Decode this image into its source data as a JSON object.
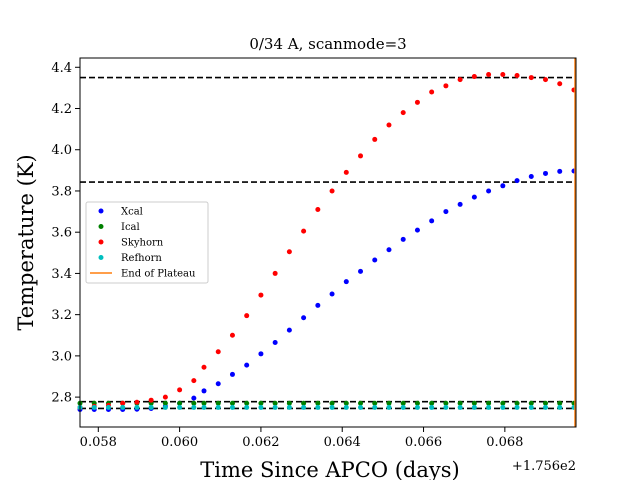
{
  "chart_data": {
    "type": "scatter",
    "title": "0/34 A, scanmode=3",
    "xlabel": "Time Since APCO (days)",
    "ylabel": "Temperature (K)",
    "x_offset_label": "+1.756e2",
    "xlim": [
      0.05755,
      0.06975
    ],
    "ylim": [
      2.655,
      4.445
    ],
    "x_ticks": [
      0.058,
      0.06,
      0.062,
      0.064,
      0.066,
      0.068
    ],
    "x_tick_labels": [
      "0.058",
      "0.060",
      "0.062",
      "0.064",
      "0.066",
      "0.068"
    ],
    "y_ticks": [
      2.8,
      3.0,
      3.2,
      3.4,
      3.6,
      3.8,
      4.0,
      4.2,
      4.4
    ],
    "y_tick_labels": [
      "2.8",
      "3.0",
      "3.2",
      "3.4",
      "3.6",
      "3.8",
      "4.0",
      "4.2",
      "4.4"
    ],
    "grid": false,
    "legend_position": "center-left",
    "x": [
      0.05755,
      0.05825,
      0.05895,
      0.05965,
      0.06035,
      0.06095,
      0.06165,
      0.06235,
      0.06305,
      0.06375,
      0.06445,
      0.06515,
      0.06585,
      0.06655,
      0.06725,
      0.06795,
      0.06865,
      0.06935,
      0.0579,
      0.0586,
      0.0593,
      0.06,
      0.0606,
      0.0613,
      0.062,
      0.0627,
      0.0634,
      0.0641,
      0.0648,
      0.0655,
      0.0662,
      0.0669,
      0.0676,
      0.0683,
      0.069,
      0.0697
    ],
    "series": [
      {
        "name": "Xcal",
        "color": "#0000ff",
        "values": [
          2.74,
          2.74,
          2.741,
          2.755,
          2.795,
          2.865,
          2.955,
          3.065,
          3.185,
          3.3,
          3.41,
          3.515,
          3.61,
          3.7,
          3.77,
          3.825,
          3.87,
          3.895,
          2.74,
          2.74,
          2.745,
          2.77,
          2.83,
          2.91,
          3.01,
          3.125,
          3.245,
          3.36,
          3.465,
          3.565,
          3.655,
          3.735,
          3.8,
          3.85,
          3.885,
          3.897
        ]
      },
      {
        "name": "Ical",
        "color": "#008000",
        "values": [
          2.77,
          2.77,
          2.77,
          2.77,
          2.77,
          2.77,
          2.77,
          2.77,
          2.77,
          2.77,
          2.77,
          2.77,
          2.77,
          2.77,
          2.77,
          2.77,
          2.77,
          2.77,
          2.77,
          2.77,
          2.77,
          2.77,
          2.77,
          2.77,
          2.77,
          2.77,
          2.77,
          2.77,
          2.77,
          2.77,
          2.77,
          2.77,
          2.77,
          2.77,
          2.77,
          2.77
        ]
      },
      {
        "name": "Skyhorn",
        "color": "#ff0000",
        "values": [
          2.75,
          2.76,
          2.775,
          2.8,
          2.88,
          3.02,
          3.195,
          3.4,
          3.605,
          3.8,
          3.97,
          4.12,
          4.23,
          4.31,
          4.355,
          4.365,
          4.35,
          4.32,
          2.755,
          2.77,
          2.785,
          2.835,
          2.945,
          3.1,
          3.295,
          3.505,
          3.71,
          3.89,
          4.05,
          4.18,
          4.28,
          4.34,
          4.365,
          4.36,
          4.34,
          4.29
        ]
      },
      {
        "name": "Refhorn",
        "color": "#00bfbf",
        "values": [
          2.75,
          2.75,
          2.75,
          2.75,
          2.75,
          2.75,
          2.75,
          2.75,
          2.75,
          2.75,
          2.75,
          2.75,
          2.75,
          2.75,
          2.75,
          2.75,
          2.75,
          2.75,
          2.75,
          2.75,
          2.75,
          2.75,
          2.75,
          2.75,
          2.75,
          2.75,
          2.75,
          2.75,
          2.75,
          2.75,
          2.75,
          2.75,
          2.75,
          2.75,
          2.75,
          2.75
        ]
      }
    ],
    "hlines": [
      4.35,
      3.843,
      2.778,
      2.745
    ],
    "hline_color": "#000000",
    "vline": {
      "name": "End of Plateau",
      "x": 0.06975,
      "color": "#ff7f0e"
    },
    "legend": [
      "Xcal",
      "Ical",
      "Skyhorn",
      "Refhorn",
      "End of Plateau"
    ]
  }
}
